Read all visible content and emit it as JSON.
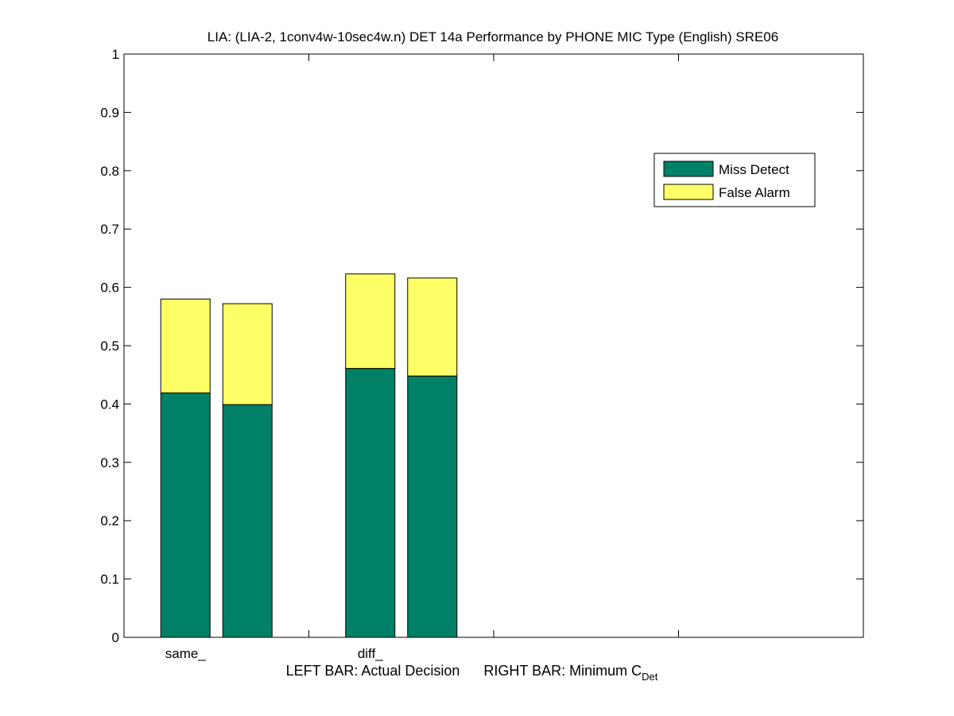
{
  "chart_data": {
    "type": "bar",
    "stacked": true,
    "title": "LIA: (LIA-2, 1conv4w-10sec4w.n) DET 14a Performance by PHONE MIC Type (English) SRE06",
    "xlabel": {
      "left": "LEFT BAR: Actual Decision",
      "right": "RIGHT BAR: Minimum C",
      "right_sub": "Det"
    },
    "ylabel": "",
    "ylim": [
      0,
      1
    ],
    "yticks": [
      "0",
      "0.1",
      "0.2",
      "0.3",
      "0.4",
      "0.5",
      "0.6",
      "0.7",
      "0.8",
      "0.9",
      "1"
    ],
    "categories": [
      "same_",
      "diff_"
    ],
    "bar_roles": [
      "Actual Decision",
      "Minimum C_Det"
    ],
    "series": [
      {
        "name": "Miss Detect",
        "color": "#008066",
        "values": [
          [
            0.419,
            0.399
          ],
          [
            0.461,
            0.448
          ]
        ]
      },
      {
        "name": "False Alarm",
        "color": "#ffff66",
        "values": [
          [
            0.161,
            0.173
          ],
          [
            0.162,
            0.168
          ]
        ]
      }
    ],
    "legend_position": "top-right",
    "grid": false
  }
}
